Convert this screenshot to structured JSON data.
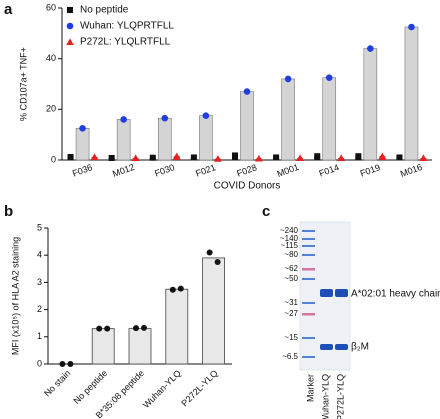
{
  "chart_data": [
    {
      "panel": "a",
      "type": "bar",
      "y_label": "% CD107a+ TNF+",
      "x_label": "COVID Donors",
      "categories": [
        "F036",
        "M012",
        "F030",
        "F021",
        "F028",
        "M001",
        "F014",
        "F019",
        "M016"
      ],
      "series": [
        {
          "name": "No peptide",
          "color": "#111111",
          "bar_color": "#111111",
          "marker": "square",
          "values": [
            1.2,
            0.8,
            0.9,
            1.0,
            1.8,
            1.0,
            1.5,
            1.5,
            1.0
          ]
        },
        {
          "name": "Wuhan: YLQPRTFLL",
          "color": "#1f3fe0",
          "bar_color": "#d4d4d4",
          "marker": "circle",
          "values": [
            12.5,
            16,
            16.5,
            17.5,
            27,
            32,
            32.5,
            44,
            52.5
          ]
        },
        {
          "name": "P272L: YLQLRTFLL",
          "color": "#e32222",
          "bar_color": "#e32222",
          "marker": "triangle",
          "values": [
            1.2,
            0.8,
            1.5,
            0.5,
            0.6,
            0.8,
            0.8,
            1.5,
            0.8
          ]
        }
      ],
      "ylim": [
        0,
        60
      ],
      "yticks": [
        0,
        20,
        40,
        60
      ]
    },
    {
      "panel": "b",
      "type": "bar",
      "y_label": "MFI (x10⁵) of HLA A2 staining",
      "categories": [
        "No stain",
        "No peptide",
        "B*35:08 peptide",
        "Wuhan-YLQ",
        "P272L-YLQ"
      ],
      "category_colors": [
        "#111111",
        "#111111",
        "#111111",
        "#1f3fe0",
        "#e32222"
      ],
      "values": [
        0,
        1.3,
        1.3,
        2.75,
        3.9
      ],
      "points": [
        [
          0,
          0
        ],
        [
          1.3,
          1.3
        ],
        [
          1.32,
          1.33
        ],
        [
          2.73,
          2.77
        ],
        [
          4.1,
          3.75
        ]
      ],
      "color": "#e8e8e8",
      "ylim": [
        0,
        5
      ],
      "yticks": [
        0,
        1,
        2,
        3,
        4,
        5
      ]
    }
  ],
  "gel": {
    "panel": "c",
    "markers": [
      "~240",
      "~140",
      "~115",
      "~80",
      "~62",
      "~50",
      "~31",
      "~27",
      "~15",
      "~6.5"
    ],
    "bands": [
      "A*02:01 heavy chain",
      "β₂M"
    ],
    "lanes": [
      {
        "label": "Marker",
        "color": "#111111"
      },
      {
        "label": "Wuhan-YLQ",
        "color": "#1f3fe0"
      },
      {
        "label": "P272L-YLQ",
        "color": "#e32222"
      }
    ]
  }
}
